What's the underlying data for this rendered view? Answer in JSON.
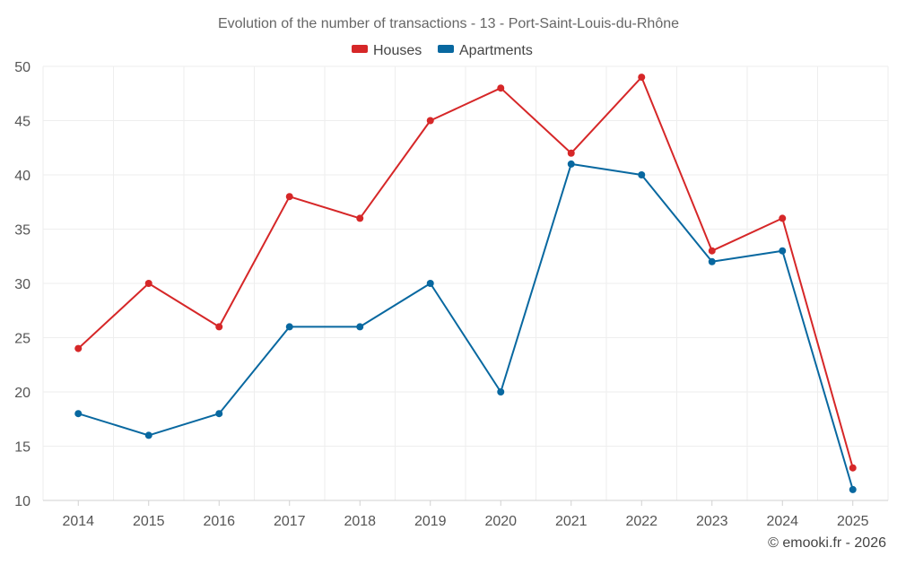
{
  "chart_data": {
    "type": "line",
    "title": "Evolution of the number of transactions - 13 - Port-Saint-Louis-du-Rhône",
    "categories": [
      "2014",
      "2015",
      "2016",
      "2017",
      "2018",
      "2019",
      "2020",
      "2021",
      "2022",
      "2023",
      "2024",
      "2025"
    ],
    "yticks": [
      "10",
      "15",
      "20",
      "25",
      "30",
      "35",
      "40",
      "45",
      "50"
    ],
    "ylim": [
      10,
      50
    ],
    "xlabel": "",
    "ylabel": "",
    "grid": true,
    "legend_position": "top-center",
    "series": [
      {
        "name": "Houses",
        "color": "#d62728",
        "values": [
          24,
          30,
          26,
          38,
          36,
          45,
          48,
          42,
          49,
          33,
          36,
          13
        ]
      },
      {
        "name": "Apartments",
        "color": "#0868a0",
        "values": [
          18,
          16,
          18,
          26,
          26,
          30,
          20,
          41,
          40,
          32,
          33,
          11
        ]
      }
    ]
  },
  "footer": {
    "credit": "© emooki.fr - 2026"
  }
}
